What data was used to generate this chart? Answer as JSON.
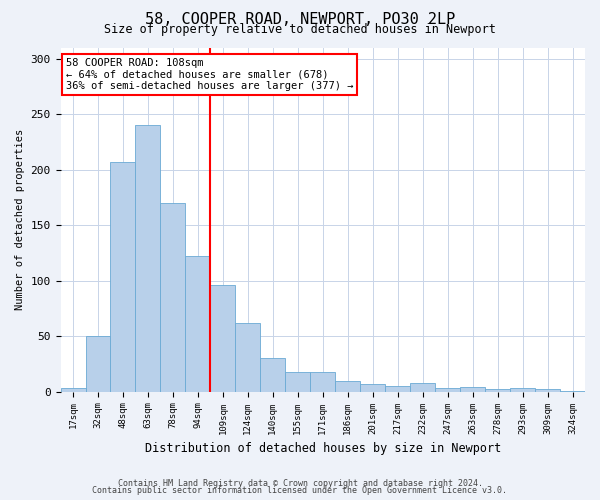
{
  "title": "58, COOPER ROAD, NEWPORT, PO30 2LP",
  "subtitle": "Size of property relative to detached houses in Newport",
  "xlabel": "Distribution of detached houses by size in Newport",
  "ylabel": "Number of detached properties",
  "footnote1": "Contains HM Land Registry data © Crown copyright and database right 2024.",
  "footnote2": "Contains public sector information licensed under the Open Government Licence v3.0.",
  "categories": [
    "17sqm",
    "32sqm",
    "48sqm",
    "63sqm",
    "78sqm",
    "94sqm",
    "109sqm",
    "124sqm",
    "140sqm",
    "155sqm",
    "171sqm",
    "186sqm",
    "201sqm",
    "217sqm",
    "232sqm",
    "247sqm",
    "263sqm",
    "278sqm",
    "293sqm",
    "309sqm",
    "324sqm"
  ],
  "values": [
    3,
    50,
    207,
    240,
    170,
    122,
    96,
    62,
    30,
    18,
    18,
    10,
    7,
    5,
    8,
    3,
    4,
    2,
    3,
    2,
    1
  ],
  "bar_color": "#b8d0ea",
  "bar_edge_color": "#6aaad4",
  "vline_index": 6,
  "vline_color": "red",
  "annotation_text": "58 COOPER ROAD: 108sqm\n← 64% of detached houses are smaller (678)\n36% of semi-detached houses are larger (377) →",
  "ylim": [
    0,
    310
  ],
  "yticks": [
    0,
    50,
    100,
    150,
    200,
    250,
    300
  ],
  "background_color": "#eef2f9",
  "plot_bg_color": "#ffffff",
  "grid_color": "#c8d4e8"
}
